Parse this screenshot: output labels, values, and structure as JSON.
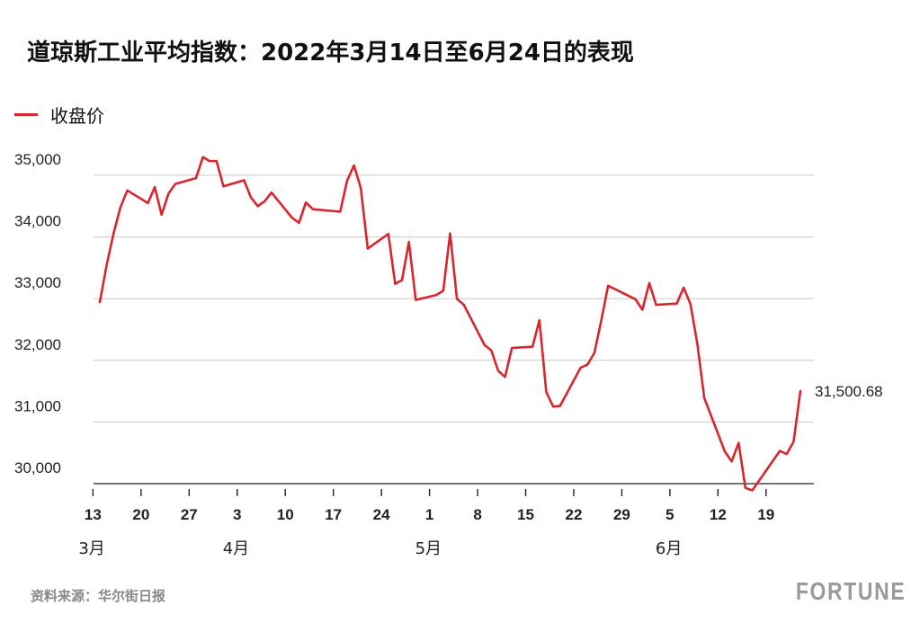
{
  "chart_data": {
    "type": "line",
    "title": "道琼斯工业平均指数：2022年3月14日至6月24日的表现",
    "legend": "收盘价",
    "legend_position": "top-left",
    "series": [
      {
        "name": "收盘价",
        "color": "#d7262e",
        "points": [
          [
            "2022-03-14",
            32945
          ],
          [
            "2022-03-15",
            33545
          ],
          [
            "2022-03-16",
            34060
          ],
          [
            "2022-03-17",
            34480
          ],
          [
            "2022-03-18",
            34755
          ],
          [
            "2022-03-21",
            34550
          ],
          [
            "2022-03-22",
            34810
          ],
          [
            "2022-03-23",
            34360
          ],
          [
            "2022-03-24",
            34705
          ],
          [
            "2022-03-25",
            34860
          ],
          [
            "2022-03-28",
            34955
          ],
          [
            "2022-03-29",
            35295
          ],
          [
            "2022-03-30",
            35230
          ],
          [
            "2022-03-31",
            35230
          ],
          [
            "2022-04-01",
            34820
          ],
          [
            "2022-04-04",
            34920
          ],
          [
            "2022-04-05",
            34640
          ],
          [
            "2022-04-06",
            34500
          ],
          [
            "2022-04-07",
            34580
          ],
          [
            "2022-04-08",
            34720
          ],
          [
            "2022-04-11",
            34310
          ],
          [
            "2022-04-12",
            34230
          ],
          [
            "2022-04-13",
            34560
          ],
          [
            "2022-04-14",
            34450
          ],
          [
            "2022-04-18",
            34410
          ],
          [
            "2022-04-19",
            34910
          ],
          [
            "2022-04-20",
            35160
          ],
          [
            "2022-04-21",
            34790
          ],
          [
            "2022-04-22",
            33810
          ],
          [
            "2022-04-25",
            34050
          ],
          [
            "2022-04-26",
            33240
          ],
          [
            "2022-04-27",
            33300
          ],
          [
            "2022-04-28",
            33920
          ],
          [
            "2022-04-29",
            32980
          ],
          [
            "2022-05-02",
            33060
          ],
          [
            "2022-05-03",
            33130
          ],
          [
            "2022-05-04",
            34060
          ],
          [
            "2022-05-05",
            32995
          ],
          [
            "2022-05-06",
            32900
          ],
          [
            "2022-05-09",
            32250
          ],
          [
            "2022-05-10",
            32160
          ],
          [
            "2022-05-11",
            31830
          ],
          [
            "2022-05-12",
            31730
          ],
          [
            "2022-05-13",
            32200
          ],
          [
            "2022-05-16",
            32220
          ],
          [
            "2022-05-17",
            32650
          ],
          [
            "2022-05-18",
            31490
          ],
          [
            "2022-05-19",
            31250
          ],
          [
            "2022-05-20",
            31260
          ],
          [
            "2022-05-23",
            31880
          ],
          [
            "2022-05-24",
            31930
          ],
          [
            "2022-05-25",
            32120
          ],
          [
            "2022-05-26",
            32640
          ],
          [
            "2022-05-27",
            33210
          ],
          [
            "2022-05-31",
            32990
          ],
          [
            "2022-06-01",
            32820
          ],
          [
            "2022-06-02",
            33250
          ],
          [
            "2022-06-03",
            32900
          ],
          [
            "2022-06-06",
            32920
          ],
          [
            "2022-06-07",
            33180
          ],
          [
            "2022-06-08",
            32910
          ],
          [
            "2022-06-09",
            32270
          ],
          [
            "2022-06-10",
            31390
          ],
          [
            "2022-06-13",
            30520
          ],
          [
            "2022-06-14",
            30360
          ],
          [
            "2022-06-15",
            30660
          ],
          [
            "2022-06-16",
            29930
          ],
          [
            "2022-06-17",
            29890
          ],
          [
            "2022-06-21",
            30530
          ],
          [
            "2022-06-22",
            30480
          ],
          [
            "2022-06-23",
            30680
          ],
          [
            "2022-06-24",
            31500.68
          ]
        ]
      }
    ],
    "end_label": "31,500.68",
    "y_axis": {
      "ylim": [
        29850,
        35400
      ],
      "ticks": [
        30000,
        31000,
        32000,
        33000,
        34000,
        35000
      ],
      "tick_labels": [
        "30,000",
        "31,000",
        "32,000",
        "33,000",
        "34,000",
        "35,000"
      ],
      "gridlines": true
    },
    "x_axis": {
      "xlim": [
        "2022-03-14",
        "2022-06-24"
      ],
      "ticks": [
        "2022-03-13",
        "2022-03-20",
        "2022-03-27",
        "2022-04-03",
        "2022-04-10",
        "2022-04-17",
        "2022-04-24",
        "2022-05-01",
        "2022-05-08",
        "2022-05-15",
        "2022-05-22",
        "2022-05-29",
        "2022-06-05",
        "2022-06-12",
        "2022-06-19"
      ],
      "tick_labels": [
        "13",
        "20",
        "27",
        "3",
        "10",
        "17",
        "24",
        "1",
        "8",
        "15",
        "22",
        "29",
        "5",
        "12",
        "19"
      ],
      "month_labels": [
        {
          "date": "2022-03-13",
          "label": "3月"
        },
        {
          "date": "2022-04-03",
          "label": "4月"
        },
        {
          "date": "2022-05-01",
          "label": "5月"
        },
        {
          "date": "2022-06-05",
          "label": "6月"
        }
      ]
    }
  },
  "source": "资料来源：华尔街日报",
  "brand": "FORTUNE"
}
